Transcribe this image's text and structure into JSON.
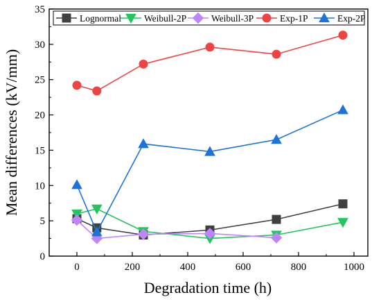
{
  "chart_data": {
    "type": "line",
    "xlabel": "Degradation time (h)",
    "ylabel": "Mean differences (kV/mm)",
    "xlim": [
      -100,
      1050
    ],
    "ylim": [
      0,
      35
    ],
    "x_ticks": [
      0,
      200,
      400,
      600,
      800,
      1000
    ],
    "y_ticks": [
      0,
      5,
      10,
      15,
      20,
      25,
      30,
      35
    ],
    "grid": false,
    "legend_position": "top",
    "series": [
      {
        "name": "Lognormal",
        "color": "#404040",
        "marker": "square",
        "x": [
          0,
          72,
          240,
          480,
          720,
          960
        ],
        "y": [
          5.3,
          4.0,
          3.0,
          3.7,
          5.2,
          7.4
        ]
      },
      {
        "name": "Weibull-2P",
        "color": "#22c55e",
        "marker": "triangle-down",
        "x": [
          0,
          72,
          240,
          480,
          720,
          960
        ],
        "y": [
          6.0,
          6.7,
          3.5,
          2.5,
          3.0,
          4.8
        ]
      },
      {
        "name": "Weibull-3P",
        "color": "#c084fc",
        "marker": "diamond",
        "x": [
          0,
          72,
          240,
          480,
          720
        ],
        "y": [
          5.1,
          2.5,
          3.1,
          3.2,
          2.6
        ]
      },
      {
        "name": "Exp-1P",
        "color": "#ef4444",
        "marker": "circle",
        "x": [
          0,
          72,
          240,
          480,
          720,
          960
        ],
        "y": [
          24.2,
          23.4,
          27.2,
          29.6,
          28.6,
          31.3
        ]
      },
      {
        "name": "Exp-2P",
        "color": "#1e73d8",
        "marker": "triangle-up",
        "x": [
          0,
          72,
          240,
          480,
          720,
          960
        ],
        "y": [
          10.1,
          3.4,
          15.9,
          14.8,
          16.5,
          20.7
        ]
      }
    ]
  }
}
